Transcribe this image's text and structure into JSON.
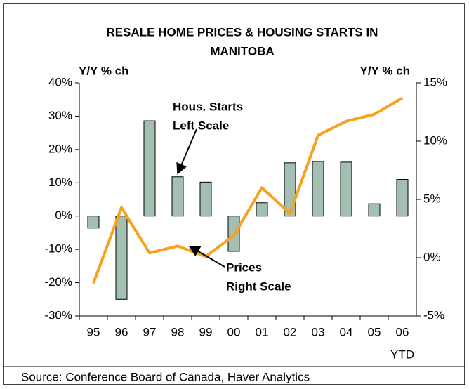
{
  "chart_data": {
    "type": "bar_line",
    "title": [
      "RESALE HOME PRICES & HOUSING STARTS IN",
      "MANITOBA"
    ],
    "y_label": "Y/Y % ch",
    "y2_label": "Y/Y % ch",
    "categories": [
      "95",
      "96",
      "97",
      "98",
      "99",
      "00",
      "01",
      "02",
      "03",
      "04",
      "05",
      "06"
    ],
    "category_note": "YTD",
    "series": [
      {
        "name": "Hous. Starts",
        "type": "bar",
        "color": "#a3bfb2",
        "values": [
          -3.6,
          -25,
          28.6,
          11.8,
          10.2,
          -10.6,
          4,
          16,
          16.4,
          16.2,
          3.7,
          11
        ]
      },
      {
        "name": "Prices",
        "type": "line",
        "axis": "y2",
        "color": "#f7a21b",
        "values": [
          -2.2,
          4.3,
          0.4,
          1.0,
          0.1,
          1.9,
          6.0,
          3.8,
          10.5,
          11.7,
          12.3,
          13.7
        ]
      }
    ],
    "ylim": [
      -30,
      40
    ],
    "yticks": [
      {
        "value": -30,
        "label": "-30%"
      },
      {
        "value": -20,
        "label": "-20%"
      },
      {
        "value": -10,
        "label": "-10%"
      },
      {
        "value": 0,
        "label": "0%"
      },
      {
        "value": 10,
        "label": "10%"
      },
      {
        "value": 20,
        "label": "20%"
      },
      {
        "value": 30,
        "label": "30%"
      },
      {
        "value": 40,
        "label": "40%"
      }
    ],
    "y2lim": [
      -5,
      15
    ],
    "y2ticks": [
      {
        "value": -5,
        "label": "-5%"
      },
      {
        "value": 0,
        "label": "0%"
      },
      {
        "value": 5,
        "label": "5%"
      },
      {
        "value": 10,
        "label": "10%"
      },
      {
        "value": 15,
        "label": "15%"
      }
    ],
    "annotations": [
      {
        "lines": [
          "Hous. Starts",
          "Left Scale"
        ]
      },
      {
        "lines": [
          "Prices",
          "Right Scale"
        ]
      }
    ],
    "source": "Source: Conference Board of Canada, Haver Analytics"
  }
}
